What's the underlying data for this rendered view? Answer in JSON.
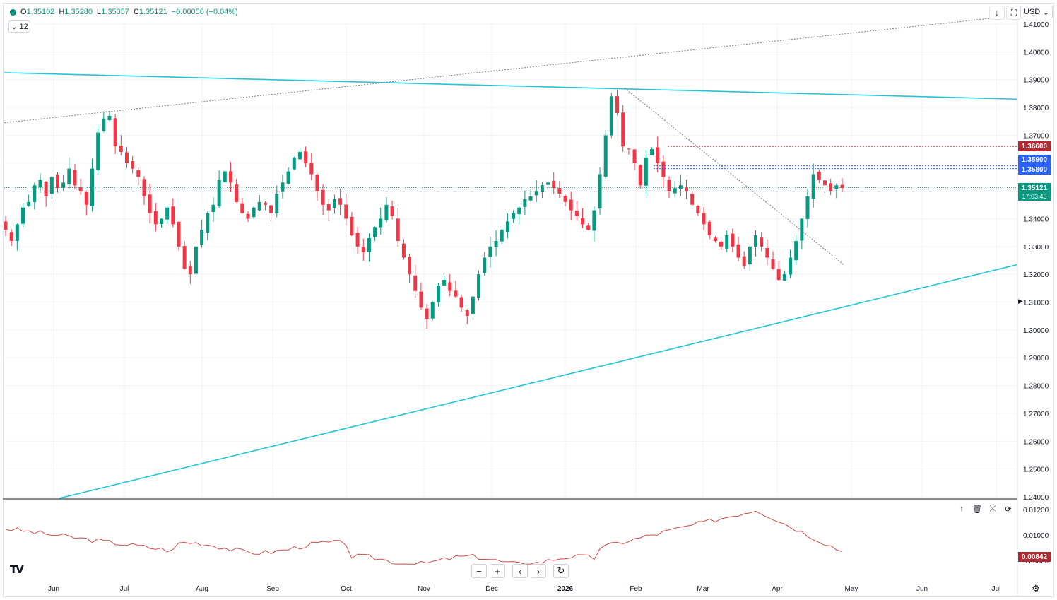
{
  "legend": {
    "open_label": "O",
    "open": "1.35102",
    "high_label": "H",
    "high": "1.35280",
    "low_label": "L",
    "low": "1.35057",
    "close_label": "C",
    "close": "1.35121",
    "change": "−0.00056 (−0.04%)"
  },
  "interval": {
    "label": "12",
    "chevron_icon": "chevron-down-icon"
  },
  "toolbar": {
    "download_icon": "arrow-down-icon",
    "fullscreen_icon": "expand-icon",
    "currency": "USD",
    "currency_icon": "chevron-down-icon"
  },
  "price_labels": {
    "level_1": {
      "text": "1.36600",
      "color": "#b22833"
    },
    "level_2": {
      "text": "1.35900",
      "color": "#2962ff"
    },
    "level_3": {
      "text": "1.35800",
      "color": "#2962ff"
    },
    "last": {
      "text": "1.35121",
      "color": "#089981"
    },
    "countdown": "17:03:45",
    "indicator_last": {
      "text": "0.00842",
      "color": "#b22833"
    }
  },
  "indicator_toolbar": {
    "up_icon": "arrow-up-icon",
    "delete_icon": "trash-icon",
    "collapse_icon": "collapse-icon",
    "settings_icon": "settings-icon"
  },
  "nav_buttons": {
    "zoom_out": "−",
    "zoom_in": "+",
    "scroll_left": "‹",
    "scroll_right": "›",
    "reset": "↻"
  },
  "logo": "TV",
  "settings_icon": "gear-icon",
  "colors": {
    "up": "#089981",
    "down": "#f23645",
    "channel": "#22c5d6",
    "grid": "#f0f3fa",
    "indicator": "#cf4b4b"
  },
  "chart_data": [
    {
      "type": "candlestick",
      "x_axis": {
        "ticks": [
          "Jun",
          "Jul",
          "Aug",
          "Sep",
          "Oct",
          "Nov",
          "Dec",
          "2026",
          "Feb",
          "Mar",
          "Apr",
          "May",
          "Jun",
          "Jul"
        ]
      },
      "y_axis": {
        "range": [
          1.24,
          1.41
        ],
        "ticks": [
          "1.41000",
          "1.40000",
          "1.39000",
          "1.38000",
          "1.37000",
          "1.36000",
          "1.35000",
          "1.34000",
          "1.33000",
          "1.32000",
          "1.31000",
          "1.30000",
          "1.29000",
          "1.28000",
          "1.27000",
          "1.26000",
          "1.25000",
          "1.24000"
        ]
      },
      "close_path": [
        1.336,
        1.332,
        1.338,
        1.344,
        1.346,
        1.352,
        1.354,
        1.348,
        1.355,
        1.351,
        1.353,
        1.358,
        1.352,
        1.35,
        1.345,
        1.358,
        1.371,
        1.376,
        1.377,
        1.366,
        1.364,
        1.36,
        1.358,
        1.355,
        1.348,
        1.342,
        1.338,
        1.34,
        1.344,
        1.338,
        1.33,
        1.322,
        1.32,
        1.33,
        1.336,
        1.342,
        1.345,
        1.354,
        1.357,
        1.353,
        1.346,
        1.342,
        1.34,
        1.344,
        1.346,
        1.345,
        1.342,
        1.349,
        1.353,
        1.357,
        1.362,
        1.364,
        1.36,
        1.356,
        1.35,
        1.345,
        1.343,
        1.347,
        1.345,
        1.34,
        1.334,
        1.33,
        1.328,
        1.333,
        1.337,
        1.34,
        1.345,
        1.341,
        1.332,
        1.326,
        1.32,
        1.314,
        1.308,
        1.304,
        1.31,
        1.316,
        1.318,
        1.314,
        1.312,
        1.308,
        1.305,
        1.312,
        1.32,
        1.326,
        1.33,
        1.332,
        1.336,
        1.339,
        1.342,
        1.344,
        1.347,
        1.348,
        1.35,
        1.352,
        1.353,
        1.351,
        1.349,
        1.346,
        1.343,
        1.341,
        1.338,
        1.336,
        1.343,
        1.356,
        1.37,
        1.384,
        1.378,
        1.366,
        1.365,
        1.36,
        1.352,
        1.362,
        1.365,
        1.36,
        1.355,
        1.35,
        1.351,
        1.352,
        1.35,
        1.345,
        1.342,
        1.338,
        1.334,
        1.332,
        1.33,
        1.334,
        1.33,
        1.326,
        1.323,
        1.33,
        1.334,
        1.33,
        1.326,
        1.322,
        1.318,
        1.32,
        1.326,
        1.332,
        1.34,
        1.348,
        1.356,
        1.354,
        1.352,
        1.35,
        1.352,
        1.351
      ],
      "trendlines": [
        {
          "name": "upper-channel",
          "from": [
            "start",
            1.3925
          ],
          "to": [
            "end",
            1.383
          ]
        },
        {
          "name": "lower-channel",
          "from": [
            "Jun",
            1.239
          ],
          "to": [
            "end",
            1.3235
          ]
        },
        {
          "name": "long-dotted",
          "from": [
            "start",
            1.3745
          ],
          "to": [
            "end",
            1.412
          ]
        },
        {
          "name": "downtrend-dotted",
          "from": [
            "Feb-peak",
            1.387
          ],
          "to": [
            "Apr-end",
            1.3235
          ]
        }
      ],
      "horizontal_levels": [
        1.366,
        1.359,
        1.358,
        1.35121
      ]
    },
    {
      "type": "line",
      "name": "",
      "y_axis": {
        "ticks": [
          "0.01200",
          "0.01000",
          "0.00800"
        ]
      },
      "last_value": 0.00842
    }
  ]
}
